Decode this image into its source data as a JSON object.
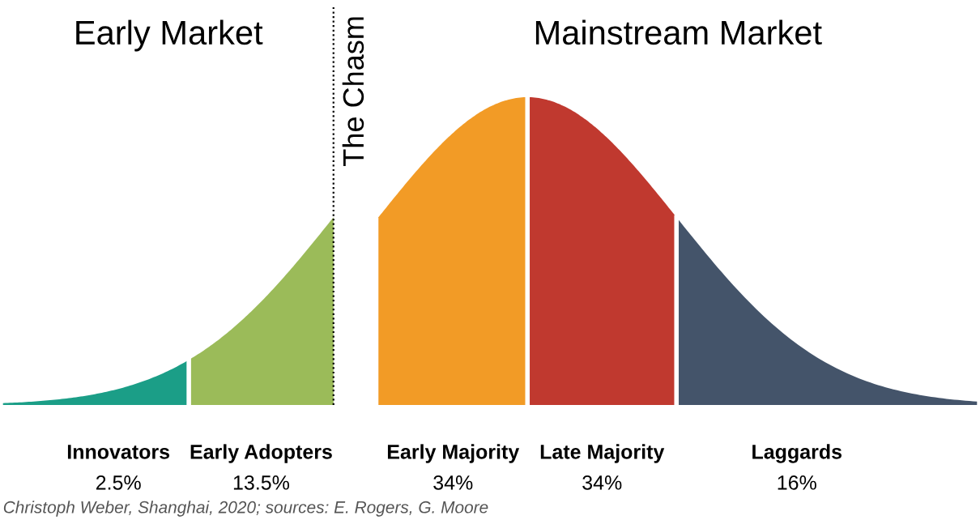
{
  "chart_data": {
    "type": "other",
    "categories": [
      "Innovators",
      "Early Adopters",
      "Early Majority",
      "Late Majority",
      "Laggards"
    ],
    "values": [
      2.5,
      13.5,
      34,
      34,
      16
    ],
    "value_labels": [
      "2.5%",
      "13.5%",
      "34%",
      "34%",
      "16%"
    ],
    "colors": [
      "#1b9e87",
      "#9bbb59",
      "#f29b26",
      "#c0392f",
      "#44546a"
    ],
    "annotations": [
      "Early Market",
      "Mainstream Market",
      "The Chasm",
      "Christoph Weber, Shanghai, 2020; sources: E. Rogers, G. Moore"
    ]
  }
}
